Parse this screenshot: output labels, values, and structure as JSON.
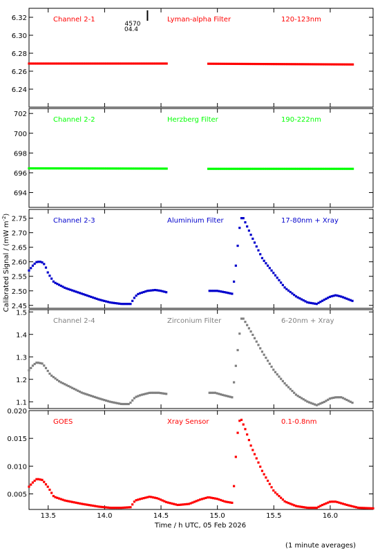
{
  "figure": {
    "ylabel_full": "Calibrated Signal / (mW m",
    "ylabel_exp": "-2",
    "ylabel_close": ")",
    "xlabel": "Time / h UTC, 05 Feb 2026",
    "footnote": "(1 minute averages)",
    "marker_label_top": "4570",
    "marker_label_bottom": "04.4",
    "marker_x": 14.38
  },
  "chart_data": [
    {
      "type": "scatter",
      "name": "Channel 2-1",
      "filter": "Lyman-alpha Filter",
      "band": "120-123nm",
      "color": "#ff0000",
      "xlim": [
        13.33,
        16.38
      ],
      "ylim": [
        6.22,
        6.33
      ],
      "yticks": [
        6.24,
        6.26,
        6.28,
        6.3,
        6.32
      ],
      "ytick_labels": [
        "6.24",
        "6.26",
        "6.28",
        "6.30",
        "6.32"
      ],
      "segments": [
        {
          "x": [
            13.33,
            14.55
          ],
          "y": [
            6.2685,
            6.2685
          ]
        },
        {
          "x": [
            14.92,
            16.2
          ],
          "y": [
            6.2683,
            6.2675
          ]
        }
      ]
    },
    {
      "type": "scatter",
      "name": "Channel 2-2",
      "filter": "Herzberg Filter",
      "band": "190-222nm",
      "color": "#00ff00",
      "xlim": [
        13.33,
        16.38
      ],
      "ylim": [
        692.5,
        702.5
      ],
      "yticks": [
        694,
        696,
        698,
        700,
        702
      ],
      "ytick_labels": [
        "694",
        "696",
        "698",
        "700",
        "702"
      ],
      "segments": [
        {
          "x": [
            13.33,
            14.55
          ],
          "y": [
            696.45,
            696.42
          ]
        },
        {
          "x": [
            14.92,
            16.2
          ],
          "y": [
            696.4,
            696.4
          ]
        }
      ]
    },
    {
      "type": "scatter",
      "name": "Channel 2-3",
      "filter": "Aluminium Filter",
      "band": "17-80nm + Xray",
      "color": "#0000cc",
      "xlim": [
        13.33,
        16.38
      ],
      "ylim": [
        2.44,
        2.78
      ],
      "yticks": [
        2.45,
        2.5,
        2.55,
        2.6,
        2.65,
        2.7,
        2.75
      ],
      "ytick_labels": [
        "2.45",
        "2.50",
        "2.55",
        "2.60",
        "2.65",
        "2.70",
        "2.75"
      ],
      "curve": [
        [
          13.33,
          2.57
        ],
        [
          13.37,
          2.59
        ],
        [
          13.4,
          2.6
        ],
        [
          13.44,
          2.6
        ],
        [
          13.47,
          2.59
        ],
        [
          13.5,
          2.56
        ],
        [
          13.55,
          2.53
        ],
        [
          13.65,
          2.51
        ],
        [
          13.8,
          2.49
        ],
        [
          13.95,
          2.47
        ],
        [
          14.05,
          2.46
        ],
        [
          14.15,
          2.455
        ],
        [
          14.23,
          2.455
        ],
        [
          14.27,
          2.48
        ],
        [
          14.3,
          2.49
        ],
        [
          14.38,
          2.5
        ],
        [
          14.45,
          2.503
        ],
        [
          14.5,
          2.5
        ],
        [
          14.55,
          2.495
        ],
        [
          14.92,
          2.5
        ],
        [
          15.0,
          2.5
        ],
        [
          15.07,
          2.495
        ],
        [
          15.13,
          2.49
        ],
        [
          15.15,
          2.54
        ],
        [
          15.17,
          2.61
        ],
        [
          15.19,
          2.7
        ],
        [
          15.21,
          2.75
        ],
        [
          15.23,
          2.75
        ],
        [
          15.3,
          2.69
        ],
        [
          15.4,
          2.61
        ],
        [
          15.5,
          2.56
        ],
        [
          15.6,
          2.51
        ],
        [
          15.7,
          2.48
        ],
        [
          15.8,
          2.46
        ],
        [
          15.88,
          2.455
        ],
        [
          15.95,
          2.47
        ],
        [
          16.0,
          2.48
        ],
        [
          16.05,
          2.485
        ],
        [
          16.1,
          2.48
        ],
        [
          16.2,
          2.465
        ]
      ]
    },
    {
      "type": "scatter",
      "name": "Channel 2-4",
      "filter": "Zirconium Filter",
      "band": "6-20nm + Xray",
      "color": "#808080",
      "xlim": [
        13.33,
        16.38
      ],
      "ylim": [
        1.07,
        1.51
      ],
      "yticks": [
        1.1,
        1.2,
        1.3,
        1.4,
        1.5
      ],
      "ytick_labels": [
        "1.1",
        "1.2",
        "1.3",
        "1.4",
        "1.5"
      ],
      "curve": [
        [
          13.33,
          1.24
        ],
        [
          13.37,
          1.265
        ],
        [
          13.4,
          1.275
        ],
        [
          13.45,
          1.27
        ],
        [
          13.48,
          1.25
        ],
        [
          13.52,
          1.22
        ],
        [
          13.6,
          1.19
        ],
        [
          13.7,
          1.165
        ],
        [
          13.8,
          1.14
        ],
        [
          13.95,
          1.115
        ],
        [
          14.05,
          1.1
        ],
        [
          14.15,
          1.09
        ],
        [
          14.22,
          1.09
        ],
        [
          14.27,
          1.12
        ],
        [
          14.32,
          1.13
        ],
        [
          14.4,
          1.14
        ],
        [
          14.48,
          1.14
        ],
        [
          14.55,
          1.135
        ],
        [
          14.92,
          1.14
        ],
        [
          14.98,
          1.14
        ],
        [
          15.05,
          1.13
        ],
        [
          15.13,
          1.12
        ],
        [
          15.15,
          1.2
        ],
        [
          15.17,
          1.29
        ],
        [
          15.19,
          1.37
        ],
        [
          15.21,
          1.47
        ],
        [
          15.23,
          1.47
        ],
        [
          15.3,
          1.41
        ],
        [
          15.4,
          1.32
        ],
        [
          15.5,
          1.24
        ],
        [
          15.6,
          1.18
        ],
        [
          15.7,
          1.13
        ],
        [
          15.8,
          1.1
        ],
        [
          15.88,
          1.085
        ],
        [
          15.95,
          1.1
        ],
        [
          16.0,
          1.115
        ],
        [
          16.05,
          1.12
        ],
        [
          16.1,
          1.12
        ],
        [
          16.2,
          1.095
        ]
      ]
    },
    {
      "type": "scatter",
      "name": "GOES",
      "filter": "Xray Sensor",
      "band": "0.1-0.8nm",
      "color": "#ff0000",
      "xlim": [
        13.33,
        16.38
      ],
      "ylim": [
        0.0022,
        0.02
      ],
      "yticks": [
        0.005,
        0.01,
        0.015,
        0.02
      ],
      "ytick_labels": [
        "0.005",
        "0.010",
        "0.015",
        "0.020"
      ],
      "curve": [
        [
          13.33,
          0.0063
        ],
        [
          13.37,
          0.0072
        ],
        [
          13.4,
          0.0077
        ],
        [
          13.45,
          0.0075
        ],
        [
          13.5,
          0.0062
        ],
        [
          13.55,
          0.0045
        ],
        [
          13.65,
          0.0038
        ],
        [
          13.8,
          0.0032
        ],
        [
          13.95,
          0.0027
        ],
        [
          14.05,
          0.0025
        ],
        [
          14.15,
          0.0025
        ],
        [
          14.23,
          0.0026
        ],
        [
          14.27,
          0.0038
        ],
        [
          14.32,
          0.0041
        ],
        [
          14.4,
          0.0045
        ],
        [
          14.47,
          0.0042
        ],
        [
          14.55,
          0.0035
        ],
        [
          14.65,
          0.003
        ],
        [
          14.75,
          0.0032
        ],
        [
          14.85,
          0.004
        ],
        [
          14.92,
          0.0044
        ],
        [
          15.0,
          0.0041
        ],
        [
          15.07,
          0.0036
        ],
        [
          15.13,
          0.0034
        ],
        [
          15.15,
          0.007
        ],
        [
          15.17,
          0.014
        ],
        [
          15.19,
          0.018
        ],
        [
          15.21,
          0.0185
        ],
        [
          15.25,
          0.0165
        ],
        [
          15.3,
          0.0135
        ],
        [
          15.4,
          0.009
        ],
        [
          15.5,
          0.0055
        ],
        [
          15.6,
          0.0036
        ],
        [
          15.7,
          0.0028
        ],
        [
          15.8,
          0.0025
        ],
        [
          15.88,
          0.0025
        ],
        [
          15.93,
          0.003
        ],
        [
          16.0,
          0.0036
        ],
        [
          16.05,
          0.0036
        ],
        [
          16.15,
          0.003
        ],
        [
          16.25,
          0.0025
        ],
        [
          16.38,
          0.0024
        ]
      ]
    }
  ],
  "xaxis": {
    "ticks": [
      13.5,
      14.0,
      14.5,
      15.0,
      15.5,
      16.0
    ],
    "tick_labels": [
      "13.5",
      "14.0",
      "14.5",
      "15.0",
      "15.5",
      "16.0"
    ]
  }
}
